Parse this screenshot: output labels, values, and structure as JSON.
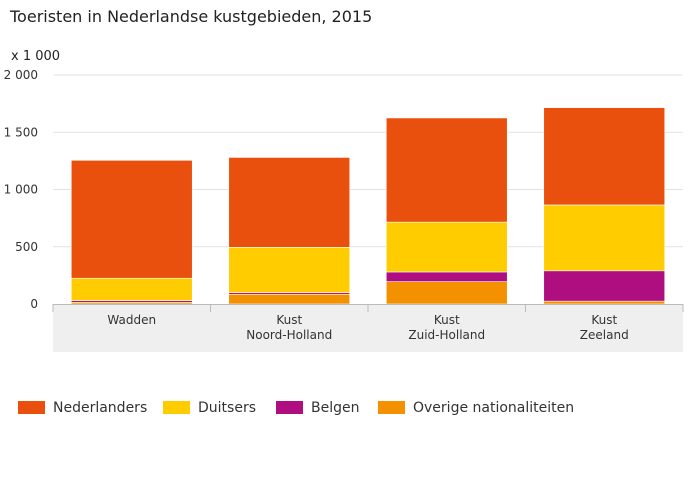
{
  "chart_data": {
    "type": "bar",
    "stacked": true,
    "title": "Toeristen in Nederlandse kustgebieden, 2015",
    "unit_label": "x 1 000",
    "ylim": [
      0,
      2000
    ],
    "yticks": [
      0,
      500,
      1000,
      1500,
      2000
    ],
    "ytick_labels": [
      "0",
      "500",
      "1 000",
      "1 500",
      "2 000"
    ],
    "grid": true,
    "legend_position": "bottom",
    "categories": [
      [
        "Wadden"
      ],
      [
        "Kust",
        "Noord-Holland"
      ],
      [
        "Kust",
        "Zuid-Holland"
      ],
      [
        "Kust",
        "Zeeland"
      ]
    ],
    "series": [
      {
        "name": "Overige nationaliteiten",
        "color": "#f39100",
        "values": [
          15,
          85,
          195,
          25
        ]
      },
      {
        "name": "Belgen",
        "color": "#af0e80",
        "values": [
          15,
          15,
          85,
          265
        ]
      },
      {
        "name": "Duitsers",
        "color": "#ffcc00",
        "values": [
          195,
          395,
          435,
          575
        ]
      },
      {
        "name": "Nederlanders",
        "color": "#e9500e",
        "values": [
          1030,
          785,
          910,
          850
        ]
      }
    ],
    "legend_order": [
      "Nederlanders",
      "Duitsers",
      "Belgen",
      "Overige nationaliteiten"
    ]
  }
}
